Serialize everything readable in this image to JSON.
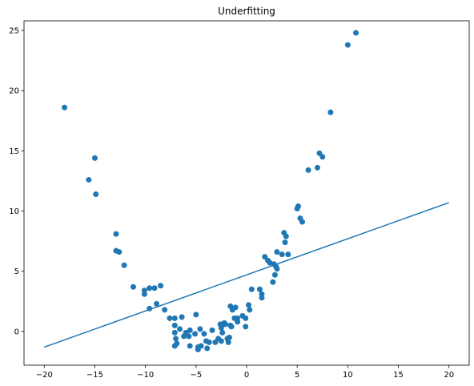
{
  "chart_data": {
    "type": "scatter",
    "title": "Underfitting",
    "xlabel": "",
    "ylabel": "",
    "xlim": [
      -22,
      22
    ],
    "ylim": [
      -2.8,
      25.8
    ],
    "xticks": [
      -20,
      -15,
      -10,
      -5,
      0,
      5,
      10,
      15,
      20
    ],
    "yticks": [
      0,
      5,
      10,
      15,
      20,
      25
    ],
    "grid": false,
    "color": "#1f77b4",
    "points": [
      [
        -18,
        18.6
      ],
      [
        -15,
        14.4
      ],
      [
        -15.6,
        12.6
      ],
      [
        -14.9,
        11.4
      ],
      [
        -12.9,
        8.1
      ],
      [
        -12.9,
        6.7
      ],
      [
        -12.6,
        6.6
      ],
      [
        -12.1,
        5.5
      ],
      [
        -11.2,
        3.7
      ],
      [
        -10.1,
        3.4
      ],
      [
        -10.1,
        3.1
      ],
      [
        -9.6,
        3.6
      ],
      [
        -9.6,
        1.9
      ],
      [
        -9.1,
        3.6
      ],
      [
        -8.9,
        2.3
      ],
      [
        -8.5,
        3.8
      ],
      [
        -8.1,
        1.8
      ],
      [
        -7.6,
        1.1
      ],
      [
        -7.1,
        1.1
      ],
      [
        -7.1,
        0.5
      ],
      [
        -7.1,
        -0.1
      ],
      [
        -7.0,
        -0.6
      ],
      [
        -7.1,
        -1.2
      ],
      [
        -6.9,
        -1.0
      ],
      [
        -6.6,
        0.2
      ],
      [
        -6.4,
        1.2
      ],
      [
        -6.2,
        -0.4
      ],
      [
        -6.0,
        -0.1
      ],
      [
        -5.6,
        0.1
      ],
      [
        -5.7,
        -0.4
      ],
      [
        -5.6,
        -1.2
      ],
      [
        -5.1,
        -0.2
      ],
      [
        -5.0,
        1.4
      ],
      [
        -4.8,
        -1.3
      ],
      [
        -4.8,
        -1.5
      ],
      [
        -4.6,
        0.2
      ],
      [
        -4.5,
        -1.2
      ],
      [
        -4.2,
        -0.2
      ],
      [
        -4.0,
        -0.8
      ],
      [
        -3.7,
        -0.9
      ],
      [
        -3.9,
        -1.4
      ],
      [
        -3.4,
        0.1
      ],
      [
        -3.1,
        -0.9
      ],
      [
        -2.8,
        -0.6
      ],
      [
        -2.6,
        0.6
      ],
      [
        -2.5,
        0.3
      ],
      [
        -2.4,
        -0.1
      ],
      [
        -2.5,
        -0.8
      ],
      [
        -2.2,
        0.7
      ],
      [
        -2.1,
        0.6
      ],
      [
        -1.9,
        -0.6
      ],
      [
        -1.7,
        -0.5
      ],
      [
        -1.8,
        -0.9
      ],
      [
        -1.6,
        0.5
      ],
      [
        -1.5,
        0.4
      ],
      [
        -1.6,
        2.1
      ],
      [
        -1.4,
        1.8
      ],
      [
        -1.2,
        1.1
      ],
      [
        -1.1,
        2.0
      ],
      [
        -0.9,
        1.1
      ],
      [
        -0.9,
        0.8
      ],
      [
        -0.4,
        1.3
      ],
      [
        -0.1,
        1.1
      ],
      [
        -0.1,
        0.4
      ],
      [
        0.2,
        2.2
      ],
      [
        0.3,
        1.8
      ],
      [
        0.5,
        3.5
      ],
      [
        1.3,
        3.5
      ],
      [
        1.5,
        3.1
      ],
      [
        1.5,
        2.8
      ],
      [
        1.8,
        6.2
      ],
      [
        2.1,
        5.9
      ],
      [
        2.3,
        5.7
      ],
      [
        2.6,
        4.1
      ],
      [
        2.7,
        5.6
      ],
      [
        2.8,
        4.7
      ],
      [
        2.9,
        5.4
      ],
      [
        3.0,
        5.2
      ],
      [
        3.0,
        6.6
      ],
      [
        3.5,
        6.4
      ],
      [
        3.7,
        8.2
      ],
      [
        3.8,
        7.4
      ],
      [
        3.9,
        7.9
      ],
      [
        4.1,
        6.4
      ],
      [
        5.0,
        10.2
      ],
      [
        5.1,
        10.4
      ],
      [
        5.3,
        9.4
      ],
      [
        5.5,
        9.1
      ],
      [
        6.1,
        13.4
      ],
      [
        7.0,
        13.6
      ],
      [
        7.2,
        14.8
      ],
      [
        7.5,
        14.5
      ],
      [
        8.3,
        18.2
      ],
      [
        10.0,
        23.8
      ],
      [
        10.8,
        24.8
      ]
    ],
    "line": {
      "x": [
        -20,
        20
      ],
      "y": [
        -1.3,
        10.7
      ]
    }
  }
}
